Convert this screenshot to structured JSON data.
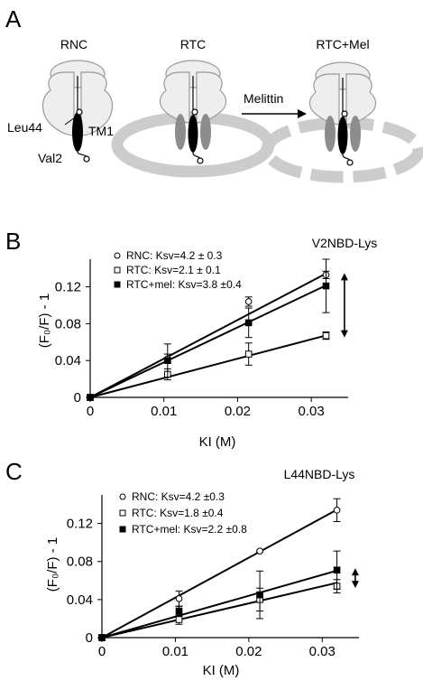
{
  "panel_a": {
    "label": "A",
    "headers": [
      "RNC",
      "RTC",
      "RTC+Mel"
    ],
    "labels": {
      "leu": "Leu44",
      "tm": "TM1",
      "val": "Val2",
      "arrow": "Melittin"
    }
  },
  "panel_b": {
    "label": "B",
    "tag": "V2NBD-Lys",
    "ylabel": "(F₀/F) - 1",
    "xlabel": "KI (M)"
  },
  "panel_c": {
    "label": "C",
    "tag": "L44NBD-Lys",
    "ylabel": "(F₀/F) - 1",
    "xlabel": "KI (M)"
  },
  "colors": {
    "ink": "#000000",
    "ribosome_fill": "#eeeeee",
    "ribosome_stroke": "#999999",
    "membrane": "#cccccc",
    "helix_grey": "#8c8c8c"
  },
  "chart_data": [
    {
      "type": "scatter",
      "panel": "B",
      "title": "V2NBD-Lys",
      "xlabel": "KI (M)",
      "ylabel": "(F₀/F) - 1",
      "xlim": [
        0,
        0.035
      ],
      "ylim": [
        0,
        0.15
      ],
      "x_ticks": [
        0,
        0.01,
        0.02,
        0.03
      ],
      "x_tick_labels": [
        "0",
        "0.01",
        "0.02",
        "0.03"
      ],
      "y_ticks": [
        0,
        0.04,
        0.08,
        0.12
      ],
      "y_tick_labels": [
        "0",
        "0.04",
        "0.08",
        "0.12"
      ],
      "grid": false,
      "legend_position": "top-left",
      "series": [
        {
          "legend": "RNC: Ksv=4.2 ± 0.3",
          "marker": "open-circle",
          "x": [
            0,
            0.0105,
            0.0215,
            0.032
          ],
          "y": [
            0,
            0.042,
            0.104,
            0.133
          ],
          "err": [
            0,
            0.005,
            0.005,
            0.004
          ],
          "fit_slope": 4.2
        },
        {
          "legend": "RTC: Ksv=2.1 ± 0.1",
          "marker": "open-square",
          "x": [
            0,
            0.0105,
            0.0215,
            0.032
          ],
          "y": [
            0,
            0.025,
            0.047,
            0.067
          ],
          "err": [
            0,
            0.006,
            0.012,
            0.004
          ],
          "fit_slope": 2.1
        },
        {
          "legend": "RTC+mel: Ksv=3.8 ±0.4",
          "marker": "filled-square",
          "x": [
            0,
            0.0105,
            0.0215,
            0.032
          ],
          "y": [
            0,
            0.04,
            0.081,
            0.121
          ],
          "err": [
            0,
            0.018,
            0.016,
            0.029
          ],
          "fit_slope": 3.8
        }
      ],
      "annotations": [
        {
          "type": "double-arrow",
          "x": 0.0345,
          "y_from": 0.066,
          "y_to": 0.134
        }
      ]
    },
    {
      "type": "scatter",
      "panel": "C",
      "title": "L44NBD-Lys",
      "xlabel": "KI (M)",
      "ylabel": "(F₀/F) - 1",
      "xlim": [
        0,
        0.035
      ],
      "ylim": [
        0,
        0.15
      ],
      "x_ticks": [
        0,
        0.01,
        0.02,
        0.03
      ],
      "x_tick_labels": [
        "0",
        "0.01",
        "0.02",
        "0.03"
      ],
      "y_ticks": [
        0,
        0.04,
        0.08,
        0.12
      ],
      "y_tick_labels": [
        "0",
        "0.04",
        "0.08",
        "0.12"
      ],
      "grid": false,
      "legend_position": "top-left",
      "series": [
        {
          "legend": "RNC: Ksv=4.2 ±0.3",
          "marker": "open-circle",
          "x": [
            0,
            0.0105,
            0.0215,
            0.032
          ],
          "y": [
            0,
            0.041,
            0.091,
            0.134
          ],
          "err": [
            0,
            0.008,
            0.001,
            0.012
          ],
          "fit_slope": 4.2
        },
        {
          "legend": "RTC: Ksv=1.8 ±0.4",
          "marker": "open-square",
          "x": [
            0,
            0.0105,
            0.0215,
            0.032
          ],
          "y": [
            0,
            0.019,
            0.04,
            0.054
          ],
          "err": [
            0,
            0.005,
            0.012,
            0.007
          ],
          "fit_slope": 1.8
        },
        {
          "legend": "RTC+mel: Ksv=2.2 ±0.8",
          "marker": "filled-square",
          "x": [
            0,
            0.0105,
            0.0215,
            0.032
          ],
          "y": [
            0,
            0.028,
            0.045,
            0.071
          ],
          "err": [
            0,
            0.005,
            0.025,
            0.02
          ],
          "fit_slope": 2.2
        }
      ],
      "annotations": [
        {
          "type": "double-arrow",
          "x": 0.0345,
          "y_from": 0.053,
          "y_to": 0.072
        }
      ]
    }
  ]
}
